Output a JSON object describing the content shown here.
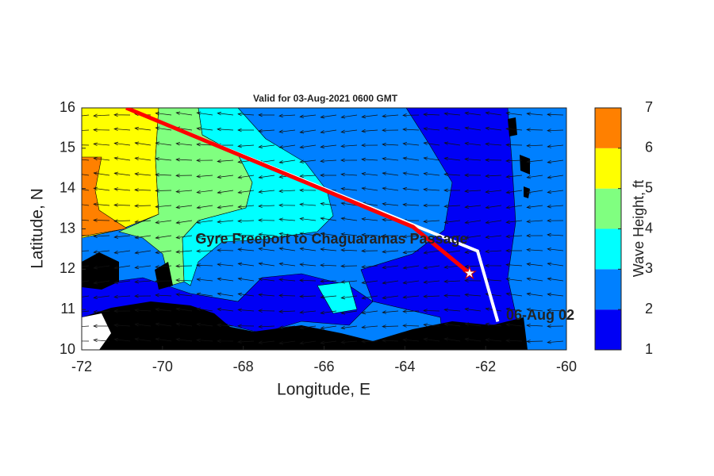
{
  "chart_data": {
    "type": "map",
    "title": "Valid for 03-Aug-2021 0600 GMT",
    "xlabel": "Longitude, E",
    "ylabel": "Latitude, N",
    "xlim": [
      -72,
      -60
    ],
    "xticks": [
      -72,
      -70,
      -68,
      -66,
      -64,
      -62,
      -60
    ],
    "ylim": [
      10,
      16
    ],
    "yticks": [
      10,
      11,
      12,
      13,
      14,
      15,
      16
    ],
    "annotations": [
      "Gyre Freeport to Chaguaramas Passage",
      "06-Aug 02"
    ],
    "series": [
      {
        "color": "#ffffff",
        "x": [
          -70.9,
          -63.8,
          -62.2,
          -61.7
        ],
        "y": [
          16,
          13.1,
          12.45,
          10.7
        ]
      },
      {
        "color": "#ff0000",
        "x": [
          -70.9,
          -63.8,
          -62.4
        ],
        "y": [
          16,
          13.05,
          11.9
        ]
      }
    ],
    "marker": {
      "x": -62.4,
      "y": 11.9
    },
    "colorbar": {
      "label": "Wave Height, ft",
      "lim": [
        1,
        7
      ],
      "ticks": [
        1,
        2,
        3,
        4,
        5,
        6,
        7
      ],
      "colors": [
        "#0000f5",
        "#0080ff",
        "#00ffff",
        "#80ff80",
        "#ffff00",
        "#ff8000"
      ]
    }
  }
}
